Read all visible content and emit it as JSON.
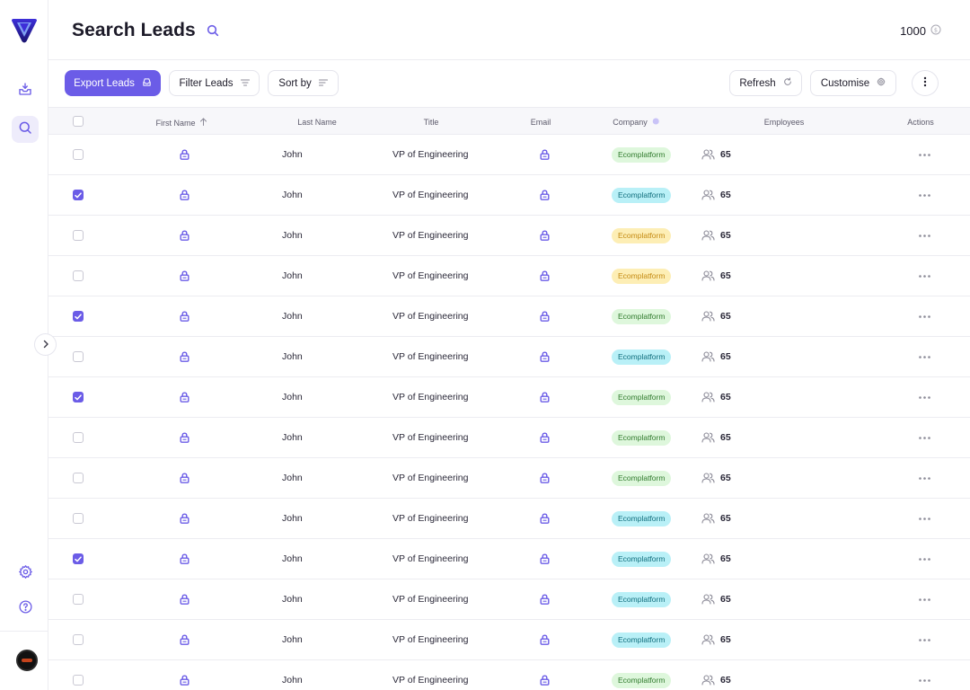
{
  "page": {
    "title": "Search Leads"
  },
  "credits": {
    "value": "1000"
  },
  "toolbar": {
    "export_label": "Export Leads",
    "filter_label": "Filter Leads",
    "sort_label": "Sort by",
    "refresh_label": "Refresh",
    "customise_label": "Customise"
  },
  "columns": [
    "First Name",
    "Last Name",
    "Title",
    "Email",
    "Company",
    "Employees",
    "Actions"
  ],
  "colors": {
    "accent": "#6b5ce7",
    "badge_green_bg": "#def7dc",
    "badge_green_text": "#2f7a2c",
    "badge_cyan_bg": "#b9f0f7",
    "badge_cyan_text": "#0f6d7c",
    "badge_yellow_bg": "#fdeeb5",
    "badge_yellow_text": "#c48a12"
  },
  "icons": {
    "logo": "brand-v-logo",
    "first_name": "lock-icon",
    "email": "lock-icon",
    "employees": "users-icon",
    "actions": "more-horizontal-icon"
  },
  "rows": [
    {
      "checked": false,
      "last_name": "John",
      "title": "VP of Engineering",
      "company": "Ecomplatform",
      "company_color": "green",
      "employees": "65"
    },
    {
      "checked": true,
      "last_name": "John",
      "title": "VP of Engineering",
      "company": "Ecomplatform",
      "company_color": "cyan",
      "employees": "65"
    },
    {
      "checked": false,
      "last_name": "John",
      "title": "VP of Engineering",
      "company": "Ecomplatform",
      "company_color": "yellow",
      "employees": "65"
    },
    {
      "checked": false,
      "last_name": "John",
      "title": "VP of Engineering",
      "company": "Ecomplatform",
      "company_color": "yellow",
      "employees": "65"
    },
    {
      "checked": true,
      "last_name": "John",
      "title": "VP of Engineering",
      "company": "Ecomplatform",
      "company_color": "green",
      "employees": "65"
    },
    {
      "checked": false,
      "last_name": "John",
      "title": "VP of Engineering",
      "company": "Ecomplatform",
      "company_color": "cyan",
      "employees": "65"
    },
    {
      "checked": true,
      "last_name": "John",
      "title": "VP of Engineering",
      "company": "Ecomplatform",
      "company_color": "green",
      "employees": "65"
    },
    {
      "checked": false,
      "last_name": "John",
      "title": "VP of Engineering",
      "company": "Ecomplatform",
      "company_color": "green",
      "employees": "65"
    },
    {
      "checked": false,
      "last_name": "John",
      "title": "VP of Engineering",
      "company": "Ecomplatform",
      "company_color": "green",
      "employees": "65"
    },
    {
      "checked": false,
      "last_name": "John",
      "title": "VP of Engineering",
      "company": "Ecomplatform",
      "company_color": "cyan",
      "employees": "65"
    },
    {
      "checked": true,
      "last_name": "John",
      "title": "VP of Engineering",
      "company": "Ecomplatform",
      "company_color": "cyan",
      "employees": "65"
    },
    {
      "checked": false,
      "last_name": "John",
      "title": "VP of Engineering",
      "company": "Ecomplatform",
      "company_color": "cyan",
      "employees": "65"
    },
    {
      "checked": false,
      "last_name": "John",
      "title": "VP of Engineering",
      "company": "Ecomplatform",
      "company_color": "cyan",
      "employees": "65"
    },
    {
      "checked": false,
      "last_name": "John",
      "title": "VP of Engineering",
      "company": "Ecomplatform",
      "company_color": "green",
      "employees": "65"
    }
  ]
}
